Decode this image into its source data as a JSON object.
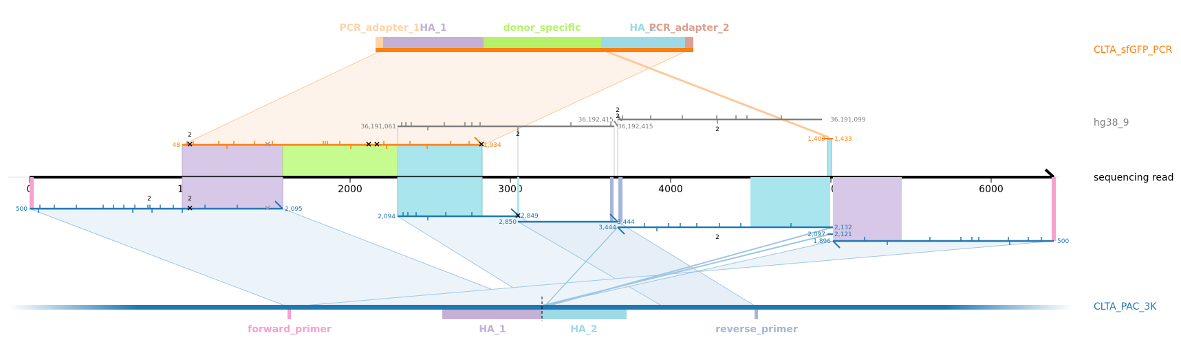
{
  "tracks": {
    "pcr": {
      "name": "CLTA_sfGFP_PCR",
      "color": "#ff7f0e"
    },
    "genome": {
      "name": "hg38_9",
      "color": "#808080"
    },
    "read": {
      "name": "sequencing read",
      "color": "#000000"
    },
    "pac": {
      "name": "CLTA_PAC_3K",
      "color": "#1f77b4"
    }
  },
  "pcr_features": [
    {
      "name": "PCR_adapter_1",
      "color": "#ffd2a8"
    },
    {
      "name": "HA_1",
      "color": "#c5b0d5"
    },
    {
      "name": "donor_specific",
      "color": "#b5f26a"
    },
    {
      "name": "HA_2",
      "color": "#9edae5"
    },
    {
      "name": "PCR_adapter_2",
      "color": "#dba08f"
    }
  ],
  "pac_features": [
    {
      "name": "forward_primer",
      "color": "#f7a1cf"
    },
    {
      "name": "HA_1",
      "color": "#c5b0d5"
    },
    {
      "name": "HA_2",
      "color": "#9edae5"
    },
    {
      "name": "reverse_primer",
      "color": "#a6b5d8"
    }
  ],
  "read_axis": {
    "ticks": [
      "0",
      "1000",
      "2000",
      "3000",
      "4000",
      "5000",
      "6000"
    ],
    "length": 6400
  },
  "alignment_labels": {
    "pcr": {
      "start": "48",
      "end": "1,934"
    },
    "genome_a": {
      "start": "36,191,061",
      "end": "36,192,415"
    },
    "genome_b": {
      "start": "36,192,415",
      "end": "36,191,099"
    },
    "genome_c": {
      "start": "1,409",
      "end": "1,433"
    },
    "pac_a": {
      "start": "500",
      "end": "2,095"
    },
    "pac_b": {
      "start": "2,094",
      "end": "2,849"
    },
    "pac_c": {
      "start": "2,850",
      "end": "3,444"
    },
    "pac_d": {
      "start": "3,444",
      "end": "2,132"
    },
    "pac_e": {
      "start": "2,097",
      "end": "2,121"
    },
    "pac_f": {
      "start": "1,896",
      "end": "500"
    }
  },
  "count_marks": [
    "2",
    "2",
    "2",
    "2",
    "2",
    "2",
    "2",
    "2"
  ]
}
